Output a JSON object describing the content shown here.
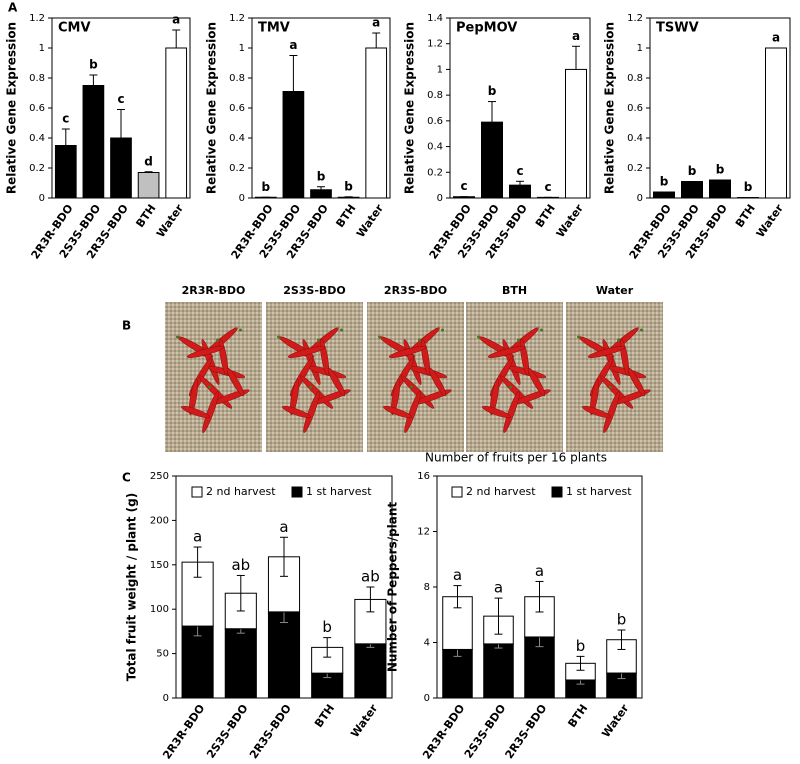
{
  "panel_labels": [
    "A",
    "B",
    "C"
  ],
  "photo_panel": {
    "labels": [
      "2R3R-BDO",
      "2S3S-BDO",
      "2R3S-BDO",
      "BTH",
      "Water"
    ]
  },
  "chart_data": [
    {
      "type": "bar",
      "title": "CMV",
      "ylabel": "Relative Gene Expression",
      "categories": [
        "2R3R-BDO",
        "2S3S-BDO",
        "2R3S-BDO",
        "BTH",
        "Water"
      ],
      "values": [
        0.35,
        0.75,
        0.4,
        0.17,
        1.0
      ],
      "errors": [
        0.11,
        0.07,
        0.19,
        0.005,
        0.12
      ],
      "letters": [
        "c",
        "b",
        "c",
        "d",
        "a"
      ],
      "colors": [
        "#000000",
        "#000000",
        "#000000",
        "#c0c0c0",
        "#ffffff"
      ],
      "ylim": [
        0,
        1.2
      ],
      "yticks": [
        0,
        0.2,
        0.4,
        0.6,
        0.8,
        1,
        1.2
      ]
    },
    {
      "type": "bar",
      "title": "TMV",
      "ylabel": "Relative Gene Expression",
      "categories": [
        "2R3R-BDO",
        "2S3S-BDO",
        "2R3S-BDO",
        "BTH",
        "Water"
      ],
      "values": [
        0.005,
        0.71,
        0.055,
        0.005,
        1.0
      ],
      "errors": [
        0,
        0.24,
        0.02,
        0.003,
        0.1
      ],
      "letters": [
        "b",
        "a",
        "b",
        "b",
        "a"
      ],
      "colors": [
        "#000000",
        "#000000",
        "#000000",
        "#000000",
        "#ffffff"
      ],
      "ylim": [
        0,
        1.2
      ],
      "yticks": [
        0,
        0.2,
        0.4,
        0.6,
        0.8,
        1,
        1.2
      ]
    },
    {
      "type": "bar",
      "title": "PepMOV",
      "ylabel": "Relative Gene Expression",
      "categories": [
        "2R3R-BDO",
        "2S3S-BDO",
        "2R3S-BDO",
        "BTH",
        "Water"
      ],
      "values": [
        0.01,
        0.59,
        0.1,
        0.005,
        1.0
      ],
      "errors": [
        0,
        0.16,
        0.03,
        0,
        0.18
      ],
      "letters": [
        "c",
        "b",
        "c",
        "c",
        "a"
      ],
      "colors": [
        "#000000",
        "#000000",
        "#000000",
        "#000000",
        "#ffffff"
      ],
      "ylim": [
        0,
        1.4
      ],
      "yticks": [
        0,
        0.2,
        0.4,
        0.6,
        0.8,
        1,
        1.2,
        1.4
      ]
    },
    {
      "type": "bar",
      "title": "TSWV",
      "ylabel": "Relative Gene Expression",
      "categories": [
        "2R3R-BDO",
        "2S3S-BDO",
        "2R3S-BDO",
        "BTH",
        "Water"
      ],
      "values": [
        0.04,
        0.11,
        0.12,
        0.003,
        1.0
      ],
      "letters": [
        "b",
        "b",
        "b",
        "b",
        "a"
      ],
      "colors": [
        "#000000",
        "#000000",
        "#000000",
        "#000000",
        "#ffffff"
      ],
      "ylim": [
        0,
        1.2
      ],
      "yticks": [
        0,
        0.2,
        0.4,
        0.6,
        0.8,
        1,
        1.2
      ]
    },
    {
      "type": "stacked_bar",
      "ylabel": "Total fruit weight / plant (g)",
      "legend": "top",
      "categories": [
        "2R3R-BDO",
        "2S3S-BDO",
        "2R3S-BDO",
        "BTH",
        "Water"
      ],
      "series": [
        {
          "name": "1 st harvest",
          "color": "#000000",
          "values": [
            81,
            78,
            97,
            28,
            61
          ],
          "errors": [
            11,
            5,
            12,
            5,
            4
          ]
        },
        {
          "name": "2 nd harvest",
          "color": "#ffffff",
          "values": [
            72,
            40,
            62,
            29,
            50
          ],
          "errors": [
            17,
            20,
            22,
            11,
            14
          ]
        }
      ],
      "letters": [
        "a",
        "ab",
        "a",
        "b",
        "ab"
      ],
      "ylim": [
        0,
        250
      ],
      "yticks": [
        0,
        50,
        100,
        150,
        200,
        250
      ]
    },
    {
      "type": "stacked_bar",
      "title": "Number of fruits per 16 plants",
      "ylabel": "Number of Peppers/plant",
      "legend": "top",
      "categories": [
        "2R3R-BDO",
        "2S3S-BDO",
        "2R3S-BDO",
        "BTH",
        "Water"
      ],
      "series": [
        {
          "name": "1 st harvest",
          "color": "#000000",
          "values": [
            3.5,
            3.9,
            4.4,
            1.3,
            1.8
          ],
          "errors": [
            0.5,
            0.3,
            0.7,
            0.3,
            0.4
          ]
        },
        {
          "name": "2 nd harvest",
          "color": "#ffffff",
          "values": [
            3.8,
            2.0,
            2.9,
            1.2,
            2.4
          ],
          "errors": [
            0.8,
            1.3,
            1.1,
            0.5,
            0.7
          ]
        }
      ],
      "letters": [
        "a",
        "a",
        "a",
        "b",
        "b"
      ],
      "ylim": [
        0,
        16
      ],
      "yticks": [
        0,
        4,
        8,
        12,
        16
      ]
    }
  ]
}
